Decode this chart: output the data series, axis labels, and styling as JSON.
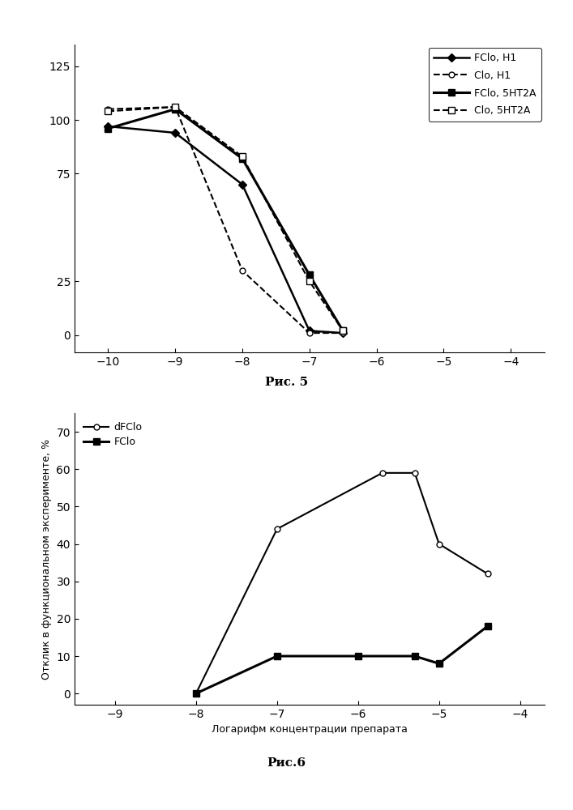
{
  "fig1": {
    "caption": "Рис. 5",
    "ylim": [
      -8,
      135
    ],
    "xlim": [
      -10.5,
      -3.5
    ],
    "yticks": [
      0,
      25,
      75,
      100,
      125
    ],
    "xticks": [
      -10,
      -9,
      -8,
      -7,
      -6,
      -5,
      -4
    ],
    "series": [
      {
        "label": "FClo, H1",
        "x": [
          -10,
          -9,
          -8,
          -7,
          -6.5
        ],
        "y": [
          97,
          94,
          70,
          2,
          1
        ],
        "color": "#000000",
        "linestyle": "-",
        "marker": "D",
        "markersize": 5,
        "linewidth": 1.8,
        "markerfacecolor": "#000000"
      },
      {
        "label": "Clo, H1",
        "x": [
          -10,
          -9,
          -8,
          -7,
          -6.5
        ],
        "y": [
          105,
          106,
          30,
          1,
          1
        ],
        "color": "#000000",
        "linestyle": "--",
        "marker": "o",
        "markersize": 5,
        "linewidth": 1.5,
        "markerfacecolor": "white"
      },
      {
        "label": "FClo, 5HT2A",
        "x": [
          -10,
          -9,
          -8,
          -7,
          -6.5
        ],
        "y": [
          96,
          105,
          82,
          28,
          2
        ],
        "color": "#000000",
        "linestyle": "-",
        "marker": "s",
        "markersize": 6,
        "linewidth": 2.2,
        "markerfacecolor": "#000000"
      },
      {
        "label": "Clo, 5HT2A",
        "x": [
          -10,
          -9,
          -8,
          -7,
          -6.5
        ],
        "y": [
          104,
          106,
          83,
          25,
          2
        ],
        "color": "#000000",
        "linestyle": "--",
        "marker": "s",
        "markersize": 6,
        "linewidth": 1.5,
        "markerfacecolor": "white"
      }
    ]
  },
  "fig2": {
    "caption": "Рис.6",
    "ylabel": "Отклик в функциональном эксперименте, %",
    "xlabel": "Логарифм концентрации препарата",
    "ylim": [
      -3,
      75
    ],
    "xlim": [
      -9.5,
      -3.7
    ],
    "yticks": [
      0,
      10,
      20,
      30,
      40,
      50,
      60,
      70
    ],
    "xticks": [
      -9,
      -8,
      -7,
      -6,
      -5,
      -4
    ],
    "series": [
      {
        "label": "dFClo",
        "x": [
          -8,
          -7,
          -5.7,
          -5.3,
          -5,
          -4.4
        ],
        "y": [
          0,
          44,
          59,
          59,
          40,
          32
        ],
        "color": "#000000",
        "linestyle": "-",
        "marker": "o",
        "markersize": 5,
        "linewidth": 1.5,
        "markerfacecolor": "white"
      },
      {
        "label": "FClo",
        "x": [
          -8,
          -7,
          -6,
          -5.3,
          -5,
          -4.4
        ],
        "y": [
          0,
          10,
          10,
          10,
          8,
          18
        ],
        "color": "#000000",
        "linestyle": "-",
        "marker": "s",
        "markersize": 6,
        "linewidth": 2.2,
        "markerfacecolor": "#000000"
      }
    ]
  }
}
